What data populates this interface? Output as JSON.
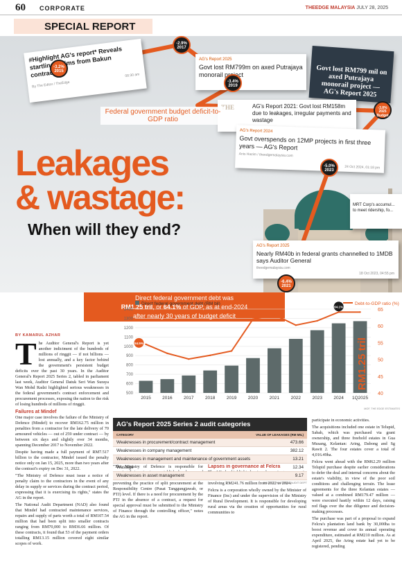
{
  "header": {
    "page_number": "60",
    "section": "CORPORATE",
    "publication": "THEEDGE MALAYSIA",
    "date": "JULY 28, 2025"
  },
  "special_report": "SPECIAL REPORT",
  "collage": {
    "clip1": {
      "title": "#Highlight AG's report* Reveals startling claims from Bakun contractors",
      "meta": "By  The Editor / TheEdge",
      "time": "08:30 am"
    },
    "clip2": {
      "tag": "AG's Report 2025",
      "title": "Govt lost RM799m on axed Putrajaya monorail project"
    },
    "clip3": {
      "title": "Govt lost RM799 mil on axed Putrajaya monorail project — AG's Report 2025"
    },
    "clip4": {
      "tag": "THE",
      "title": "AG's Report 2021: Govt lost RM158m due to leakages, irregular payments and wastage",
      "meta": "16 Feb 2023, 06:41 pm"
    },
    "clip5": {
      "tag": "AG's Report 2024",
      "title": "Govt overspends on 12MP projects in first three years — AG's Report",
      "meta": "Anis Hazim / theedgemalaysia.com",
      "time": "24 Oct 2024, 01:18 pm"
    },
    "clip6": {
      "tag": "AG's Report 2025",
      "title": "Nearly RM40b in federal grants channelled to 1MDB says Auditor General",
      "meta": "theedgemalaysia.com",
      "time": "18 Oct 2023, 04:55 pm"
    },
    "clip7": {
      "title": "MRT Corp's accumul... to meet ridership, fo..."
    }
  },
  "bubbles": [
    {
      "value": "-3.2%",
      "year": "2015"
    },
    {
      "value": "-2.9%",
      "year": "2017"
    },
    {
      "value": "-3.4%",
      "year": "2019"
    },
    {
      "value": "-3.8%",
      "year": "2025 Budget"
    },
    {
      "value": "-5.0%",
      "year": "2023"
    },
    {
      "value": "-6.4%",
      "year": "2021"
    }
  ],
  "fed_label": "Federal government budget deficit-to-GDP ratio",
  "headline": {
    "line1": "Leakages",
    "line2": "& wastage:",
    "line3": "When will they end?"
  },
  "debt_box": {
    "line1": "Direct federal government debt was",
    "line2a": "RM1.25 tril",
    "line2b": ", or ",
    "line2c": "64.1%",
    "line2d": " of GDP, as at end-2024",
    "line3": "after nearly 30 years of budget deficit"
  },
  "chart_data": {
    "type": "bar",
    "categories": [
      "2015",
      "2016",
      "2017",
      "2018",
      "2019",
      "2020",
      "2021",
      "2022",
      "2023",
      "2024",
      "1Q2025"
    ],
    "series": [
      {
        "name": "Direct federal government debt (RM bil)",
        "type": "bar",
        "axis": "left",
        "values": [
          630,
          648,
          687,
          741,
          793,
          874,
          979,
          1080,
          1173,
          1247,
          1270
        ]
      },
      {
        "name": "Debt-to-GDP ratio (%)",
        "type": "line",
        "axis": "right",
        "values": [
          54.5,
          51.8,
          50.1,
          51.2,
          52.5,
          62.0,
          63.3,
          60.2,
          61.5,
          64.1,
          64.1
        ]
      }
    ],
    "ylim_left": [
      500,
      1400
    ],
    "yticks_left": [
      500,
      600,
      700,
      800,
      900,
      1000,
      1100,
      1200,
      1300,
      1400
    ],
    "ylim_right": [
      40,
      65
    ],
    "yticks_right": [
      40,
      45,
      50,
      55,
      60,
      65
    ],
    "point_labels": [
      "54.5%",
      "64.1%"
    ],
    "vertical_label": "RM1.25 tril",
    "source": "MOF, THE EDGE ESTIMATES"
  },
  "byline": "BY KAMARUL AZHAR",
  "article": {
    "dropcap": "T",
    "p1": "he Auditor General's Report is yet another indictment of the hundreds of millions of ringgit — if not billions — lost annually, and a key factor behind the government's persistent budget deficits over the past 30 years. In the Auditor General's Report 2025 Series 2, tabled in parliament last week, Auditor General Datuk Seri Wan Suraya Wan Mohd Radzi highlighted serious weaknesses in the federal government's contract enforcement and procurement processes, exposing the nation to the risk of losing hundreds of millions of ringgit.",
    "sub1": "Failures at Mindef",
    "p2": "One major case involves the failure of the Ministry of Defence (Mindef) to recover RM162.75 million in penalties from a contractor for the late delivery of 70 armoured vehicles — out of 259 under contract — by between six days and slightly over 34 months, spanning December 2017 to November 2022.",
    "p3": "Despite having made a full payment of RM7.517 billion to the contractor, Mindef issued the penalty notice only on Jan 15, 2025, more than two years after the contract's expiry on Dec 31, 2022.",
    "p4": "\"The Ministry of Defence must issue a notice of penalty claim to the contractors in the event of any delay in supply or services during the contract period, expressing that it is exercising its rights,\" states the AG in the report.",
    "p5": "The National Audit Department (NAD) also found that Mindef had contracted maintenance services, repairs and supply of parts worth a total of RM107.54 million that had been split into smaller contracts ranging from RM70,000 to RM36.66 million. Of these contracts, it found that 53 of the payment orders totalling RM13.15 million covered eight similar scopes of work.",
    "p6": "\"The Ministry of Defence is responsible for ensuring that contracts are established and prepared within an appropriate time frame, as well as preventing the practice of split procurement at the Responsibility Centre (Pusat Tanggungjawab, or PTJ) level. If there is a need for procurement by the PTJ in the absence of a contract, a request for special approval must be submitted to the Ministry of Finance through the controlling officer,\" notes the AG in the report.",
    "sub2": "Lapses in governance at Felcra",
    "p7": "The AG also highlighted serious lapses in governance in Felcra Bhd's lease acquisition of four oil palm estates involving RM241.76 million from 2022 to 2024.",
    "p8": "Felcra is a corporation wholly owned by the Minister of Finance (Inc) and under the supervision of the Ministry of Rural Development. It is responsible for developing rural areas via the creation of opportunities for rural communities to",
    "p9": "participate in economic activities.",
    "p10": "The acquisitions included one estate in Telupid, Sabah, which was purchased via grant ownership, and three freehold estates in Gua Musang, Kelantan: Aring, Dabong and Sg Rawit 2. The four estates cover a total of 4,016.49ha.",
    "p11": "Felcra went ahead with the RM62.29 million Telupid purchase despite earlier considerations to defer the deal and internal concerns about the estate's viability, in view of the poor soil conditions and challenging terrain. The lease agreements for the three Kelantan estates — valued at a combined RM179.47 million — were executed hastily within 12 days, raising red flags over the due diligence and decision-making processes.",
    "p12": "The purchase was part of a proposal to expand Felcra's plantation land bank by 30,000ha to boost revenue and cover its annual operating expenditure, estimated at RM210 million. As at April 2025, the Aring estate had yet to be registered, pending"
  },
  "table": {
    "title": "AG's Report 2025 Series 2 audit categories",
    "col1": "CATEGORY",
    "col2": "VALUE OF LEAKAGES (RM MIL)",
    "rows": [
      {
        "category": "Weaknesses in procurement/contract management",
        "value": "473.66"
      },
      {
        "category": "Weaknesses in company management",
        "value": "382.12"
      },
      {
        "category": "Weaknesses in management and maintenance of government assets",
        "value": "13.21"
      },
      {
        "category": "Wastage",
        "value": "12.34"
      },
      {
        "category": "Weaknesses in asset management",
        "value": "9.17"
      }
    ],
    "source": "SOURCE: NATIONAL AUDIT DEPT"
  }
}
